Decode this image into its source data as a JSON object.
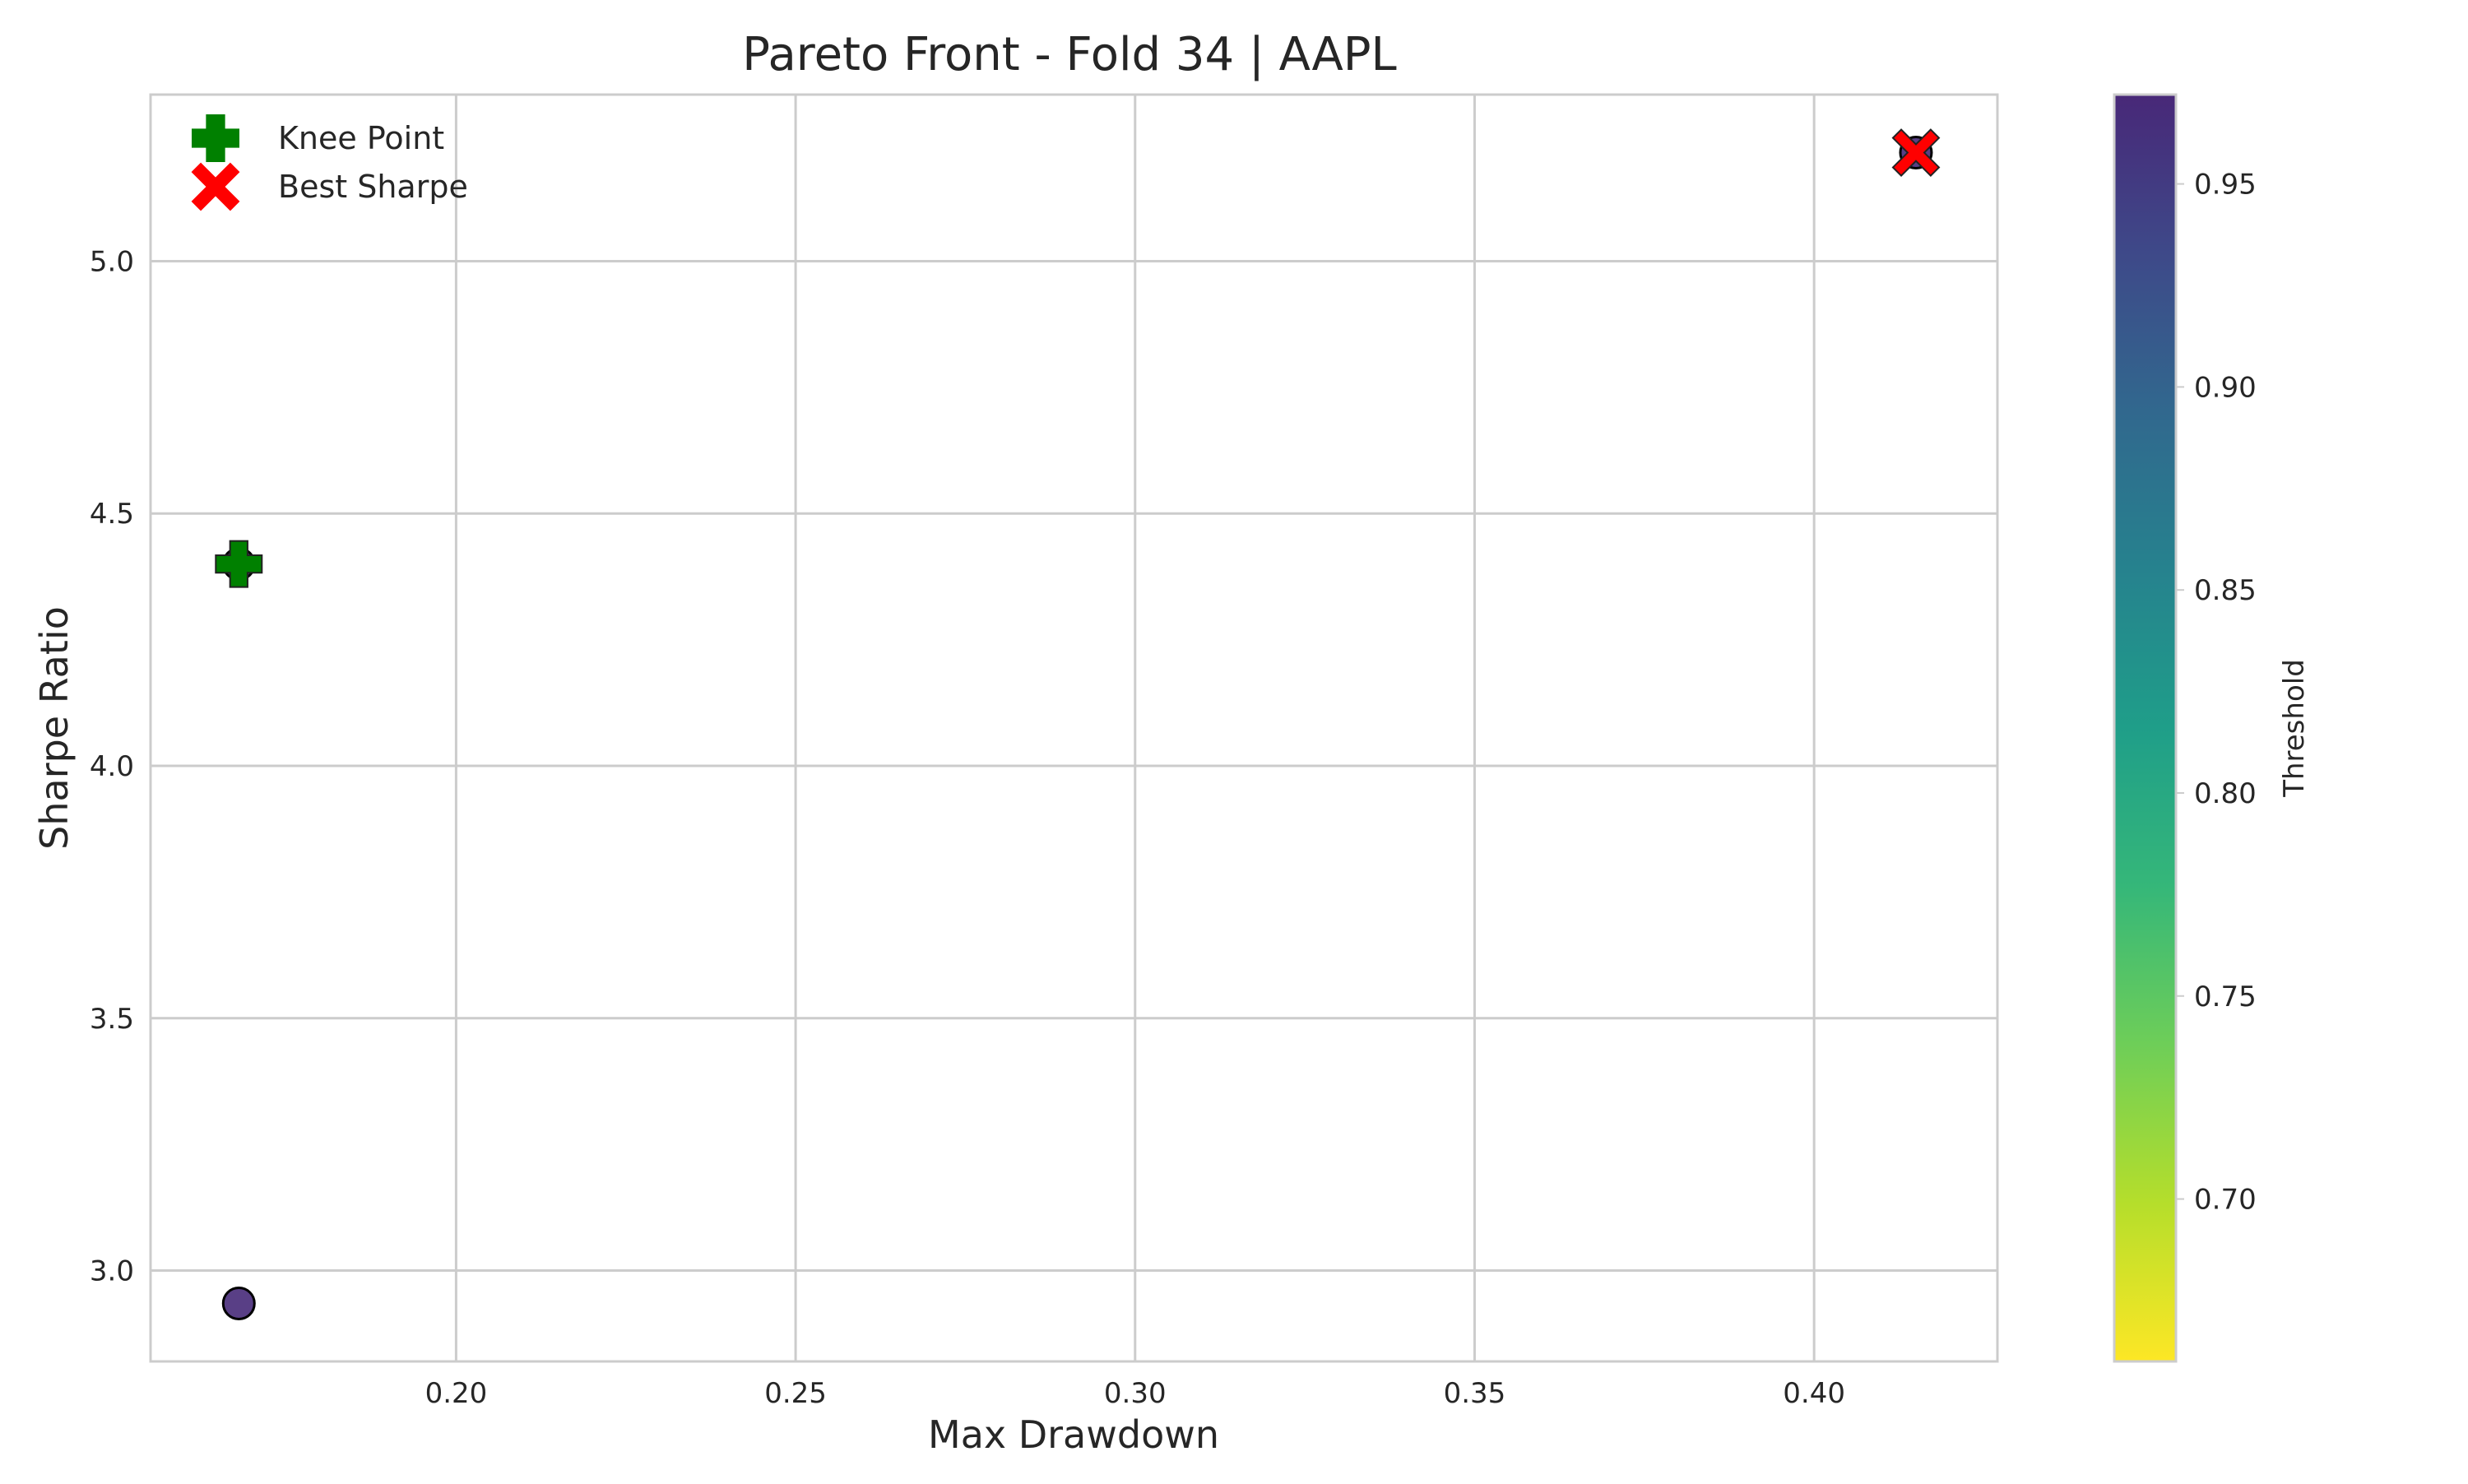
{
  "chart_data": {
    "type": "scatter",
    "title": "Pareto Front - Fold 34 | AAPL",
    "xlabel": "Max Drawdown",
    "ylabel": "Sharpe Ratio",
    "xlim": [
      0.155,
      0.427
    ],
    "ylim": [
      2.82,
      5.33
    ],
    "xticks": [
      0.2,
      0.25,
      0.3,
      0.35,
      0.4
    ],
    "xtick_labels": [
      "0.20",
      "0.25",
      "0.30",
      "0.35",
      "0.40"
    ],
    "yticks": [
      3.0,
      3.5,
      4.0,
      4.5,
      5.0
    ],
    "ytick_labels": [
      "3.0",
      "3.5",
      "4.0",
      "4.5",
      "5.0"
    ],
    "grid": true,
    "points": [
      {
        "x": 0.168,
        "y": 2.935,
        "threshold": 0.97
      },
      {
        "x": 0.168,
        "y": 4.4,
        "threshold": 0.97
      },
      {
        "x": 0.415,
        "y": 5.215,
        "threshold": 0.97
      }
    ],
    "highlights": [
      {
        "name": "Knee Point",
        "marker": "plus",
        "color": "#008000",
        "x": 0.168,
        "y": 4.4
      },
      {
        "name": "Best Sharpe",
        "marker": "x",
        "color": "#ff0000",
        "x": 0.415,
        "y": 5.215
      }
    ],
    "legend": {
      "placement": "top-left",
      "entries": [
        {
          "label": "Knee Point",
          "marker": "plus",
          "color": "#008000"
        },
        {
          "label": "Best Sharpe",
          "marker": "x",
          "color": "#ff0000"
        }
      ]
    },
    "colorbar": {
      "label": "Threshold",
      "colormap": "viridis_r",
      "range": [
        0.66,
        0.972
      ],
      "ticks": [
        0.7,
        0.75,
        0.8,
        0.85,
        0.9,
        0.95
      ],
      "tick_labels": [
        "0.70",
        "0.75",
        "0.80",
        "0.85",
        "0.90",
        "0.95"
      ]
    }
  }
}
